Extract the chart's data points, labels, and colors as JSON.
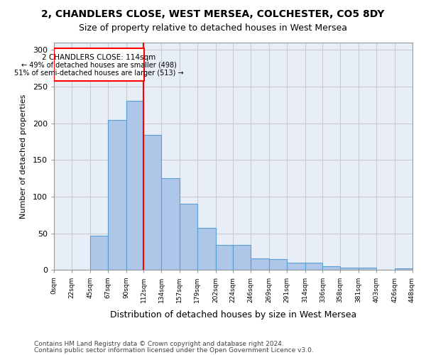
{
  "title_line1": "2, CHANDLERS CLOSE, WEST MERSEA, COLCHESTER, CO5 8DY",
  "title_line2": "Size of property relative to detached houses in West Mersea",
  "xlabel": "Distribution of detached houses by size in West Mersea",
  "ylabel": "Number of detached properties",
  "annotation_line1": "2 CHANDLERS CLOSE: 114sqm",
  "annotation_line2": "← 49% of detached houses are smaller (498)",
  "annotation_line3": "51% of semi-detached houses are larger (513) →",
  "bar_edges": [
    0,
    22,
    45,
    67,
    90,
    112,
    134,
    157,
    179,
    202,
    224,
    246,
    269,
    291,
    314,
    336,
    358,
    381,
    403,
    426,
    448
  ],
  "bar_heights": [
    0,
    0,
    47,
    205,
    231,
    184,
    125,
    90,
    58,
    34,
    34,
    16,
    15,
    10,
    10,
    5,
    3,
    3,
    0,
    2
  ],
  "bar_color": "#aec6e8",
  "bar_edge_color": "#5a9fd4",
  "red_line_x": 112,
  "ylim": [
    0,
    310
  ],
  "yticks": [
    0,
    50,
    100,
    150,
    200,
    250,
    300
  ],
  "grid_color": "#cccccc",
  "background_color": "#e8eef8",
  "footer_line1": "Contains HM Land Registry data © Crown copyright and database right 2024.",
  "footer_line2": "Contains public sector information licensed under the Open Government Licence v3.0."
}
